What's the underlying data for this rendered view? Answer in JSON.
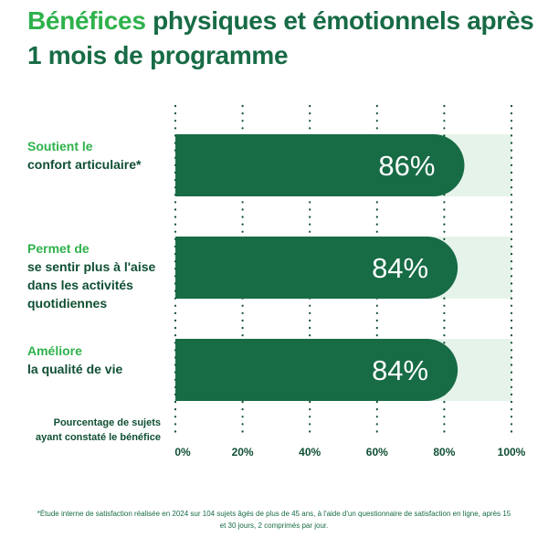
{
  "title": {
    "accent": "Bénéfices",
    "rest": " physiques et émotionnels après 1 mois de programme"
  },
  "chart_data": {
    "type": "bar",
    "orientation": "horizontal",
    "categories": [
      {
        "highlight": "Soutient le",
        "rest": "confort articulaire*"
      },
      {
        "highlight": "Permet de",
        "rest": "se sentir plus à l'aise dans les activités quotidiennes"
      },
      {
        "highlight": "Améliore",
        "rest": "la qualité de vie"
      }
    ],
    "values": [
      86,
      84,
      84
    ],
    "value_labels": [
      "86%",
      "84%",
      "84%"
    ],
    "xlim": [
      0,
      100
    ],
    "ticks": [
      0,
      20,
      40,
      60,
      80,
      100
    ],
    "tick_labels": [
      "0%",
      "20%",
      "40%",
      "60%",
      "80%",
      "100%"
    ],
    "xlabel": "Pourcentage de sujets ayant constaté le bénéfice",
    "grid": true,
    "colors": {
      "bar": "#176b45",
      "track": "#e6f3ea",
      "grid": "#0f4f33",
      "accent": "#2fb24c"
    }
  },
  "footnote": "*Étude interne de satisfaction réalisée en 2024 sur 104 sujets âgés de plus de 45 ans, à l'aide d'un questionnaire de satisfaction en ligne, après 15 et 30 jours, 2 comprimés par jour."
}
